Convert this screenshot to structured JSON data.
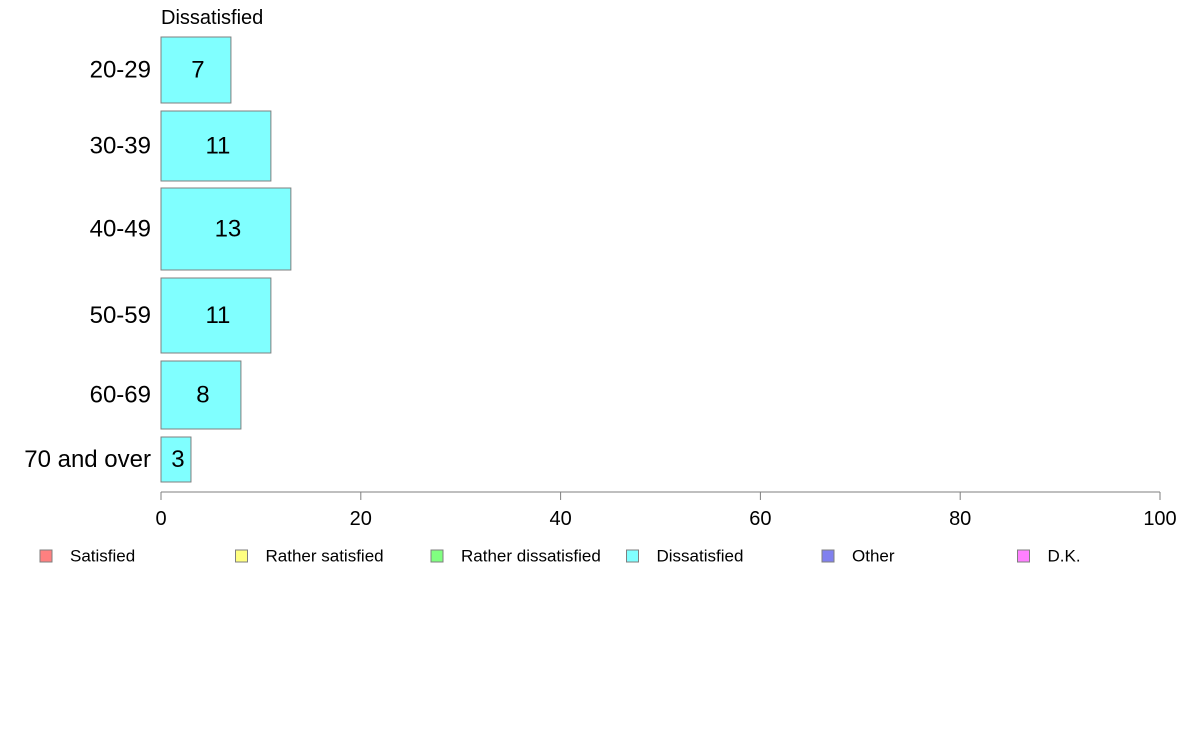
{
  "chart_data": {
    "type": "bar",
    "orientation": "horizontal",
    "panel_title": "Dissatisfied",
    "categories": [
      "20-29",
      "30-39",
      "40-49",
      "50-59",
      "60-69",
      "70 and over"
    ],
    "series": [
      {
        "name": "Dissatisfied",
        "values": [
          7,
          11,
          13,
          11,
          8,
          3
        ],
        "color": "#80ffff"
      }
    ],
    "xlim": [
      0,
      100
    ],
    "x_ticks": [
      0,
      20,
      40,
      60,
      80,
      100
    ],
    "grid": false,
    "legend_position": "bottom",
    "legend": [
      {
        "label": "Satisfied",
        "color": "#ff8080"
      },
      {
        "label": "Rather satisfied",
        "color": "#ffff80"
      },
      {
        "label": "Rather dissatisfied",
        "color": "#80ff80"
      },
      {
        "label": "Dissatisfied",
        "color": "#80ffff"
      },
      {
        "label": "Other",
        "color": "#8080ee"
      },
      {
        "label": "D.K.",
        "color": "#ff80ff"
      }
    ]
  }
}
